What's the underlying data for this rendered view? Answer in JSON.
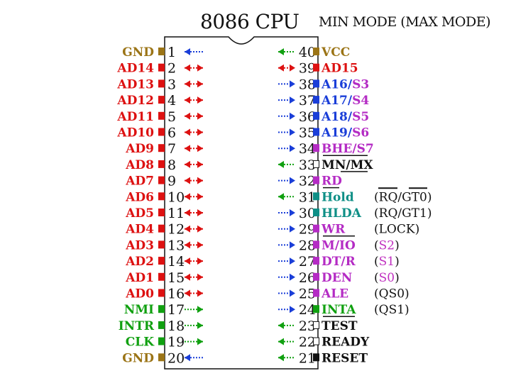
{
  "header": {
    "title": "8086 CPU",
    "mode_label": "MIN MODE (MAX MODE)"
  },
  "colors": {
    "red": "#dd1111",
    "olive": "#9b7416",
    "green": "#10a010",
    "blue": "#1a3ed8",
    "purple": "#b42bc4",
    "teal": "#0e8f86",
    "black": "#111111",
    "magenta": "#c030c0"
  },
  "left_pins": [
    {
      "num": "1",
      "name": "GND",
      "color": "olive",
      "square": "olive",
      "dir": "left"
    },
    {
      "num": "2",
      "name": "AD14",
      "color": "red",
      "square": "red",
      "dir": "both"
    },
    {
      "num": "3",
      "name": "AD13",
      "color": "red",
      "square": "red",
      "dir": "both"
    },
    {
      "num": "4",
      "name": "AD12",
      "color": "red",
      "square": "red",
      "dir": "both"
    },
    {
      "num": "5",
      "name": "AD11",
      "color": "red",
      "square": "red",
      "dir": "both"
    },
    {
      "num": "6",
      "name": "AD10",
      "color": "red",
      "square": "red",
      "dir": "both"
    },
    {
      "num": "7",
      "name": "AD9",
      "color": "red",
      "square": "red",
      "dir": "both"
    },
    {
      "num": "8",
      "name": "AD8",
      "color": "red",
      "square": "red",
      "dir": "both"
    },
    {
      "num": "9",
      "name": "AD7",
      "color": "red",
      "square": "red",
      "dir": "both"
    },
    {
      "num": "10",
      "name": "AD6",
      "color": "red",
      "square": "red",
      "dir": "both"
    },
    {
      "num": "11",
      "name": "AD5",
      "color": "red",
      "square": "red",
      "dir": "both"
    },
    {
      "num": "12",
      "name": "AD4",
      "color": "red",
      "square": "red",
      "dir": "both"
    },
    {
      "num": "13",
      "name": "AD3",
      "color": "red",
      "square": "red",
      "dir": "both"
    },
    {
      "num": "14",
      "name": "AD2",
      "color": "red",
      "square": "red",
      "dir": "both"
    },
    {
      "num": "15",
      "name": "AD1",
      "color": "red",
      "square": "red",
      "dir": "both"
    },
    {
      "num": "16",
      "name": "AD0",
      "color": "red",
      "square": "red",
      "dir": "both"
    },
    {
      "num": "17",
      "name": "NMI",
      "color": "green",
      "square": "green",
      "dir": "right"
    },
    {
      "num": "18",
      "name": "INTR",
      "color": "green",
      "square": "green",
      "dir": "right"
    },
    {
      "num": "19",
      "name": "CLK",
      "color": "green",
      "square": "green",
      "dir": "right"
    },
    {
      "num": "20",
      "name": "GND",
      "color": "olive",
      "square": "olive",
      "dir": "left"
    }
  ],
  "right_pins": [
    {
      "num": "40",
      "parts": [
        {
          "t": "VCC",
          "c": "olive"
        }
      ],
      "square": "olive",
      "arrow": "left",
      "arrow_color": "green"
    },
    {
      "num": "39",
      "parts": [
        {
          "t": "AD15",
          "c": "red"
        }
      ],
      "square": "red",
      "arrow": "both",
      "arrow_color": "red"
    },
    {
      "num": "38",
      "parts": [
        {
          "t": "A16/",
          "c": "blue"
        },
        {
          "t": "S3",
          "c": "purple"
        }
      ],
      "square": "blue",
      "arrow": "right",
      "arrow_color": "blue"
    },
    {
      "num": "37",
      "parts": [
        {
          "t": "A17/",
          "c": "blue"
        },
        {
          "t": "S4",
          "c": "purple"
        }
      ],
      "square": "blue",
      "arrow": "right",
      "arrow_color": "blue"
    },
    {
      "num": "36",
      "parts": [
        {
          "t": "A18/",
          "c": "blue"
        },
        {
          "t": "S5",
          "c": "purple"
        }
      ],
      "square": "blue",
      "arrow": "right",
      "arrow_color": "blue"
    },
    {
      "num": "35",
      "parts": [
        {
          "t": "A19/",
          "c": "blue"
        },
        {
          "t": "S6",
          "c": "purple"
        }
      ],
      "square": "blue",
      "arrow": "right",
      "arrow_color": "blue"
    },
    {
      "num": "34",
      "parts": [
        {
          "t": "BHE/",
          "c": "purple"
        },
        {
          "t": "S7",
          "c": "purple"
        }
      ],
      "square": "purple",
      "arrow": "right",
      "arrow_color": "blue",
      "overline_end": 518
    },
    {
      "num": "33",
      "parts": [
        {
          "t": "MN/MX",
          "c": "black"
        }
      ],
      "square": "hollow",
      "arrow": "left",
      "arrow_color": "green",
      "overline_start": 480,
      "overline_end": 518
    },
    {
      "num": "32",
      "parts": [
        {
          "t": "RD",
          "c": "purple"
        }
      ],
      "square": "purple",
      "arrow": "right",
      "arrow_color": "blue",
      "overline_end": 478
    },
    {
      "num": "31",
      "parts": [
        {
          "t": "Hold",
          "c": "teal"
        }
      ],
      "square": "teal",
      "arrow": "left",
      "arrow_color": "green"
    },
    {
      "num": "30",
      "parts": [
        {
          "t": "HLDA",
          "c": "teal"
        }
      ],
      "square": "teal",
      "arrow": "right",
      "arrow_color": "blue"
    },
    {
      "num": "29",
      "parts": [
        {
          "t": "WR",
          "c": "purple"
        }
      ],
      "square": "purple",
      "arrow": "right",
      "arrow_color": "blue",
      "overline_end": 500
    },
    {
      "num": "28",
      "parts": [
        {
          "t": "M/IO",
          "c": "purple"
        }
      ],
      "square": "purple",
      "arrow": "right",
      "arrow_color": "blue"
    },
    {
      "num": "27",
      "parts": [
        {
          "t": "DT/R",
          "c": "purple"
        }
      ],
      "square": "purple",
      "arrow": "right",
      "arrow_color": "blue"
    },
    {
      "num": "26",
      "parts": [
        {
          "t": "DEN",
          "c": "purple"
        }
      ],
      "square": "purple",
      "arrow": "right",
      "arrow_color": "blue"
    },
    {
      "num": "25",
      "parts": [
        {
          "t": "ALE",
          "c": "purple"
        }
      ],
      "square": "purple",
      "arrow": "right",
      "arrow_color": "blue"
    },
    {
      "num": "24",
      "parts": [
        {
          "t": "INTA",
          "c": "green"
        }
      ],
      "square": "green",
      "arrow": "right",
      "arrow_color": "blue",
      "overline_end": 500
    },
    {
      "num": "23",
      "parts": [
        {
          "t": "TEST",
          "c": "black"
        }
      ],
      "square": "hollow",
      "arrow": "left",
      "arrow_color": "green"
    },
    {
      "num": "22",
      "parts": [
        {
          "t": "READY",
          "c": "black"
        }
      ],
      "square": "hollow",
      "arrow": "left",
      "arrow_color": "green"
    },
    {
      "num": "21",
      "parts": [
        {
          "t": "RESET",
          "c": "black"
        }
      ],
      "square": "black",
      "arrow": "left",
      "arrow_color": "green"
    }
  ],
  "max_mode_labels": [
    {
      "pin": "31",
      "parts": [
        {
          "t": "(",
          "c": "black"
        },
        {
          "t": "RQ/GT0",
          "c": "black"
        },
        {
          "t": ")",
          "c": "black"
        }
      ],
      "overline": true
    },
    {
      "pin": "30",
      "parts": [
        {
          "t": "(",
          "c": "black"
        },
        {
          "t": "RQ/GT1",
          "c": "black"
        },
        {
          "t": ")",
          "c": "black"
        }
      ]
    },
    {
      "pin": "29",
      "parts": [
        {
          "t": "(",
          "c": "black"
        },
        {
          "t": "LOCK",
          "c": "black"
        },
        {
          "t": ")",
          "c": "black"
        }
      ]
    },
    {
      "pin": "28",
      "parts": [
        {
          "t": "(",
          "c": "black"
        },
        {
          "t": "S2",
          "c": "magenta"
        },
        {
          "t": ")",
          "c": "black"
        }
      ]
    },
    {
      "pin": "27",
      "parts": [
        {
          "t": "(",
          "c": "black"
        },
        {
          "t": "S1",
          "c": "magenta"
        },
        {
          "t": ")",
          "c": "black"
        }
      ]
    },
    {
      "pin": "26",
      "parts": [
        {
          "t": "(",
          "c": "black"
        },
        {
          "t": "S0",
          "c": "magenta"
        },
        {
          "t": ")",
          "c": "black"
        }
      ]
    },
    {
      "pin": "25",
      "parts": [
        {
          "t": "(",
          "c": "black"
        },
        {
          "t": "QS0",
          "c": "black"
        },
        {
          "t": ")",
          "c": "black"
        }
      ]
    },
    {
      "pin": "24",
      "parts": [
        {
          "t": "(",
          "c": "black"
        },
        {
          "t": "QS1",
          "c": "black"
        },
        {
          "t": ")",
          "c": "black"
        }
      ]
    }
  ]
}
